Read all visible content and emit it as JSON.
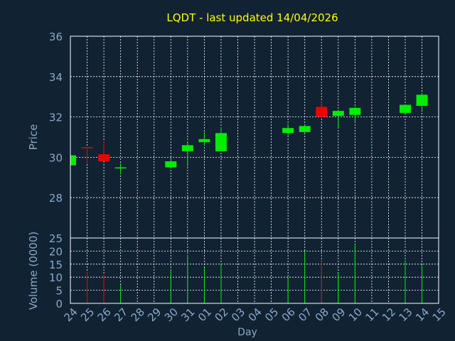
{
  "colors": {
    "background": "#112233",
    "frame": "#ffffff",
    "grid": "#ffffff",
    "title": "#ffff00",
    "axis_text": "#8aa9c8",
    "up": "#00ee00",
    "down": "#ee0000"
  },
  "chart_data": {
    "type": "candlestick",
    "title": "LQDT - last updated 14/04/2026",
    "xlabel": "Day",
    "price_ylabel": "Price",
    "volume_ylabel": "Volume (0000)",
    "price_ylim": [
      26,
      36
    ],
    "price_ticks": [
      28,
      30,
      32,
      34,
      36
    ],
    "volume_ylim": [
      0,
      25
    ],
    "volume_ticks": [
      0,
      5,
      10,
      15,
      20,
      25
    ],
    "grid": true,
    "x_ticks": [
      "24",
      "25",
      "26",
      "27",
      "28",
      "29",
      "30",
      "31",
      "01",
      "02",
      "03",
      "04",
      "05",
      "06",
      "07",
      "08",
      "09",
      "10",
      "11",
      "12",
      "13",
      "14",
      "15"
    ],
    "candles": [
      {
        "day": "24",
        "open": 29.6,
        "high": 30.2,
        "low": 29.5,
        "close": 30.1,
        "volume": 0
      },
      {
        "day": "25",
        "open": 30.5,
        "high": 30.5,
        "low": 29.7,
        "close": 30.45,
        "volume": 12
      },
      {
        "day": "26",
        "open": 30.15,
        "high": 30.8,
        "low": 29.8,
        "close": 29.8,
        "volume": 11
      },
      {
        "day": "27",
        "open": 29.45,
        "high": 29.7,
        "low": 29.15,
        "close": 29.5,
        "volume": 7
      },
      {
        "day": "30",
        "open": 29.5,
        "high": 30.0,
        "low": 29.45,
        "close": 29.8,
        "volume": 13
      },
      {
        "day": "31",
        "open": 30.3,
        "high": 30.8,
        "low": 29.55,
        "close": 30.6,
        "volume": 18.5
      },
      {
        "day": "01",
        "open": 30.75,
        "high": 31.25,
        "low": 30.6,
        "close": 30.9,
        "volume": 13.5
      },
      {
        "day": "02",
        "open": 30.3,
        "high": 31.5,
        "low": 30.3,
        "close": 31.2,
        "volume": 15
      },
      {
        "day": "06",
        "open": 31.2,
        "high": 31.65,
        "low": 31.05,
        "close": 31.45,
        "volume": 10
      },
      {
        "day": "07",
        "open": 31.25,
        "high": 31.6,
        "low": 31.2,
        "close": 31.55,
        "volume": 20
      },
      {
        "day": "08",
        "open": 32.5,
        "high": 32.75,
        "low": 32.0,
        "close": 32.0,
        "volume": 17
      },
      {
        "day": "09",
        "open": 32.05,
        "high": 32.35,
        "low": 31.45,
        "close": 32.3,
        "volume": 11.5
      },
      {
        "day": "10",
        "open": 32.1,
        "high": 32.5,
        "low": 31.75,
        "close": 32.45,
        "volume": 22.5
      },
      {
        "day": "13",
        "open": 32.2,
        "high": 32.6,
        "low": 32.2,
        "close": 32.6,
        "volume": 16.5
      },
      {
        "day": "14",
        "open": 32.55,
        "high": 33.2,
        "low": 32.35,
        "close": 33.1,
        "volume": 14.5
      }
    ]
  }
}
